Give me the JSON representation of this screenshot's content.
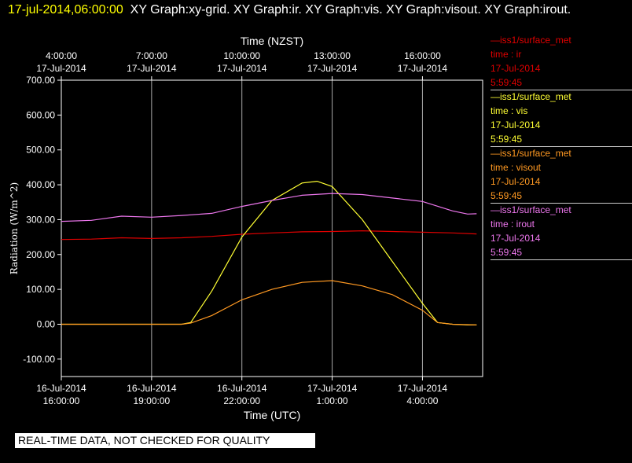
{
  "header": {
    "timestamp": "17-jul-2014,06:00:00",
    "graphs_text": "XY Graph:xy-grid.  XY Graph:ir.  XY Graph:vis.  XY Graph:visout.  XY Graph:irout."
  },
  "legend": [
    {
      "source": "—iss1/surface_met",
      "label": "time : ir",
      "date": "17-Jul-2014",
      "time": "5:59:45",
      "color": "#e00000"
    },
    {
      "source": "—iss1/surface_met",
      "label": "time : vis",
      "date": "17-Jul-2014",
      "time": "5:59:45",
      "color": "#ffff33"
    },
    {
      "source": "—iss1/surface_met",
      "label": "time : visout",
      "date": "17-Jul-2014",
      "time": "5:59:45",
      "color": "#ff9922"
    },
    {
      "source": "—iss1/surface_met",
      "label": "time : irout",
      "date": "17-Jul-2014",
      "time": "5:59:45",
      "color": "#ee77ee"
    }
  ],
  "banner": "REAL-TIME DATA, NOT CHECKED FOR QUALITY",
  "chart_data": {
    "type": "line",
    "xlabel": "Time (UTC)",
    "x2label": "Time (NZST)",
    "ylabel": "Radiation  (W/m^2)",
    "ylim": [
      -150,
      700
    ],
    "xlim_utc_hours": [
      16.0,
      6.0
    ],
    "grid": true,
    "y_ticks": [
      "-100.00",
      "0.00",
      "100.00",
      "200.00",
      "300.00",
      "400.00",
      "500.00",
      "600.00",
      "700.00"
    ],
    "x_ticks_utc": [
      {
        "date": "16-Jul-2014",
        "time": "16:00:00"
      },
      {
        "date": "16-Jul-2014",
        "time": "19:00:00"
      },
      {
        "date": "16-Jul-2014",
        "time": "22:00:00"
      },
      {
        "date": "17-Jul-2014",
        "time": "1:00:00"
      },
      {
        "date": "17-Jul-2014",
        "time": "4:00:00"
      }
    ],
    "x_ticks_nzst": [
      {
        "time": "4:00:00",
        "date": "17-Jul-2014"
      },
      {
        "time": "7:00:00",
        "date": "17-Jul-2014"
      },
      {
        "time": "10:00:00",
        "date": "17-Jul-2014"
      },
      {
        "time": "13:00:00",
        "date": "17-Jul-2014"
      },
      {
        "time": "16:00:00",
        "date": "17-Jul-2014"
      }
    ],
    "series": [
      {
        "color": "#e00000",
        "x": [
          16.0,
          17.0,
          18.0,
          19.0,
          20.0,
          21.0,
          22.0,
          23.0,
          0.0,
          1.0,
          2.0,
          3.0,
          4.0,
          5.0,
          5.8
        ],
        "values": [
          243,
          244,
          248,
          246,
          248,
          252,
          258,
          262,
          265,
          266,
          268,
          266,
          264,
          262,
          259
        ]
      },
      {
        "color": "#ffff33",
        "x": [
          16.0,
          18.0,
          19.0,
          20.0,
          20.3,
          21.0,
          22.0,
          23.0,
          0.0,
          0.5,
          1.0,
          2.0,
          3.0,
          4.0,
          4.5,
          5.0,
          5.5,
          5.8
        ],
        "values": [
          0,
          0,
          0,
          0,
          5,
          95,
          250,
          355,
          405,
          410,
          395,
          300,
          180,
          60,
          5,
          0,
          -2,
          -2
        ]
      },
      {
        "color": "#ff9922",
        "x": [
          16.0,
          18.0,
          19.0,
          20.0,
          20.3,
          21.0,
          22.0,
          23.0,
          0.0,
          1.0,
          2.0,
          3.0,
          4.0,
          4.5,
          5.0,
          5.8
        ],
        "values": [
          0,
          0,
          0,
          0,
          3,
          25,
          70,
          100,
          120,
          125,
          110,
          85,
          40,
          5,
          0,
          -2
        ]
      },
      {
        "color": "#ee77ee",
        "x": [
          16.0,
          17.0,
          18.0,
          19.0,
          20.0,
          21.0,
          22.0,
          23.0,
          0.0,
          1.0,
          2.0,
          3.0,
          4.0,
          5.0,
          5.5,
          5.8
        ],
        "values": [
          295,
          298,
          310,
          307,
          312,
          318,
          338,
          355,
          370,
          375,
          372,
          362,
          352,
          325,
          316,
          317
        ]
      }
    ]
  }
}
